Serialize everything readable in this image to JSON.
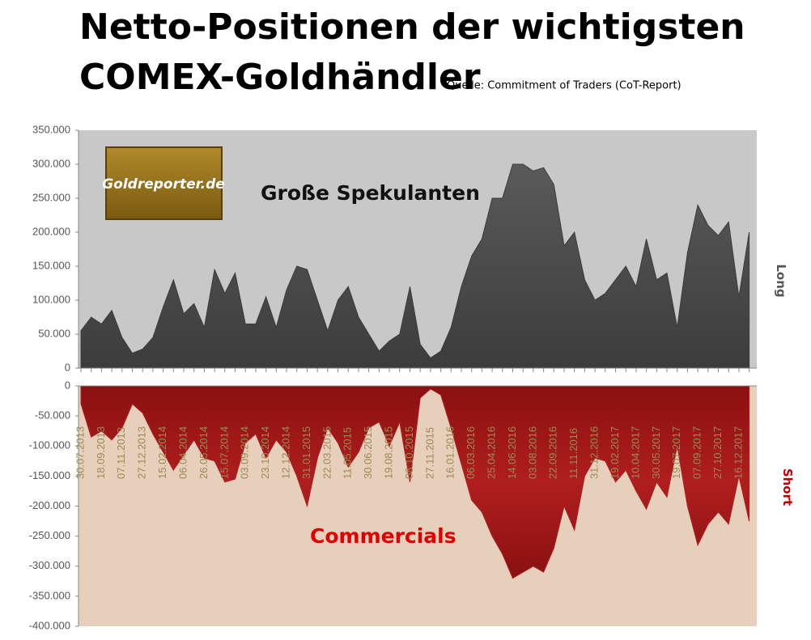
{
  "header": {
    "title_lines": [
      "Netto-Positionen der wichtigsten",
      "COMEX-Goldhändler"
    ],
    "source": "Quelle: Commitment of Traders (CoT-Report)"
  },
  "logo": "Goldreporter.de",
  "chart_data": [
    {
      "type": "area",
      "annotation": "Große Spekulanten",
      "side_label": "Long",
      "color": "#3c3c3c",
      "background": "#c8c8c8",
      "ylim": [
        0,
        350000
      ],
      "yticks": [
        {
          "value": 0,
          "label": "0"
        },
        {
          "value": 50000,
          "label": "50.000"
        },
        {
          "value": 100000,
          "label": "100.000"
        },
        {
          "value": 150000,
          "label": "150.000"
        },
        {
          "value": 200000,
          "label": "200.000"
        },
        {
          "value": 250000,
          "label": "250.000"
        },
        {
          "value": 300000,
          "label": "300.000"
        },
        {
          "value": 350000,
          "label": "350.000"
        }
      ],
      "values": [
        55000,
        75000,
        65000,
        85000,
        45000,
        22000,
        28000,
        45000,
        90000,
        130000,
        80000,
        95000,
        60000,
        145000,
        110000,
        140000,
        65000,
        65000,
        105000,
        60000,
        115000,
        150000,
        145000,
        100000,
        55000,
        100000,
        120000,
        75000,
        50000,
        25000,
        40000,
        50000,
        120000,
        35000,
        15000,
        25000,
        60000,
        120000,
        165000,
        190000,
        250000,
        250000,
        300000,
        300000,
        290000,
        295000,
        270000,
        180000,
        200000,
        130000,
        100000,
        110000,
        130000,
        150000,
        120000,
        190000,
        130000,
        140000,
        60000,
        170000,
        240000,
        210000,
        195000,
        215000,
        105000,
        200000
      ]
    },
    {
      "type": "area",
      "annotation": "Commercials",
      "side_label": "Short",
      "color": "#b01e1e",
      "background": "#e6cfbb",
      "ylim": [
        -400000,
        0
      ],
      "yticks": [
        0,
        {
          "value": -50000,
          "label": "-50.000"
        },
        {
          "value": -100000,
          "label": "-100.000"
        },
        {
          "value": -150000,
          "label": "-150.000"
        },
        {
          "value": -200000,
          "label": "-200.000"
        },
        {
          "value": -250000,
          "label": "-250.000"
        },
        {
          "value": -300000,
          "label": "-300.000"
        },
        {
          "value": -350000,
          "label": "-350.000"
        },
        {
          "value": -400000,
          "label": "-400.000"
        }
      ],
      "categories": [
        "30.07.2013",
        null,
        "18.09.2013",
        null,
        "07.11.2013",
        null,
        "27.12.2013",
        null,
        "15.02.2014",
        null,
        "06.04.2014",
        null,
        "26.05.2014",
        null,
        "15.07.2014",
        null,
        "03.09.2014",
        null,
        "23.10.2014",
        null,
        "12.12.2014",
        null,
        "31.01.2015",
        null,
        "22.03.2015",
        null,
        "11.05.2015",
        null,
        "30.06.2015",
        null,
        "19.08.2015",
        null,
        "08.10.2015",
        null,
        "27.11.2015",
        null,
        "16.01.2016",
        null,
        "06.03.2016",
        null,
        "25.04.2016",
        null,
        "14.06.2016",
        null,
        "03.08.2016",
        null,
        "22.09.2016",
        null,
        "11.11.2016",
        null,
        "31.12.2016",
        null,
        "19.02.2017",
        null,
        "10.04.2017",
        null,
        "30.05.2017",
        null,
        "19.07.2017",
        null,
        "07.09.2017",
        null,
        "27.10.2017",
        null,
        "16.12.2017",
        null
      ],
      "values": [
        -30000,
        -85000,
        -75000,
        -90000,
        -70000,
        -30000,
        -45000,
        -80000,
        -110000,
        -140000,
        -115000,
        -90000,
        -120000,
        -125000,
        -160000,
        -155000,
        -95000,
        -80000,
        -120000,
        -90000,
        -110000,
        -150000,
        -200000,
        -120000,
        -70000,
        -95000,
        -135000,
        -110000,
        -70000,
        -60000,
        -100000,
        -60000,
        -160000,
        -20000,
        -5000,
        -15000,
        -70000,
        -130000,
        -190000,
        -210000,
        -250000,
        -280000,
        -320000,
        -310000,
        -300000,
        -310000,
        -270000,
        -200000,
        -240000,
        -150000,
        -120000,
        -125000,
        -160000,
        -140000,
        -175000,
        -205000,
        -160000,
        -185000,
        -100000,
        -200000,
        -265000,
        -230000,
        -210000,
        -230000,
        -150000,
        -225000
      ]
    }
  ]
}
